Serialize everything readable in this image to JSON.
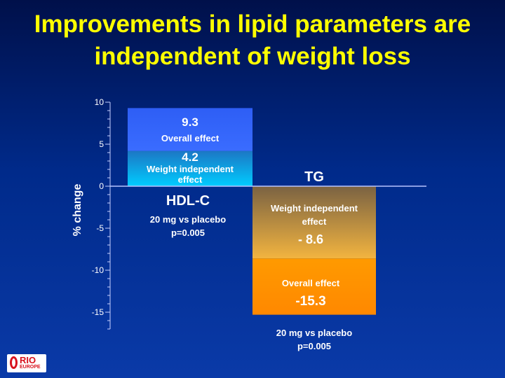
{
  "slide": {
    "title_line1": "Improvements in lipid parameters are",
    "title_line2": "independent of weight loss"
  },
  "chart_data": {
    "type": "bar",
    "ylabel": "% change",
    "ylim": [
      -17,
      10
    ],
    "yticks": [
      10,
      5,
      0,
      -5,
      -10,
      -15
    ],
    "groups": [
      {
        "name": "HDL-C",
        "subtitle_line1": "20 mg vs placebo",
        "subtitle_line2": "p=0.005",
        "segments": [
          {
            "label_value": "4.2",
            "label_line1": "Weight independent",
            "label_line2": "effect",
            "from": 0,
            "to": 4.2,
            "color_top": "#1c77c4",
            "color_bottom": "#00ccff"
          },
          {
            "label_value": "9.3",
            "label_line1": "Overall effect",
            "label_line2": "",
            "from": 4.2,
            "to": 9.3,
            "color_top": "#2e5ef5",
            "color_bottom": "#3a6cff"
          }
        ]
      },
      {
        "name": "TG",
        "subtitle_line1": "20 mg vs placebo",
        "subtitle_line2": "p=0.005",
        "segments": [
          {
            "label_value": "- 8.6",
            "label_line1": "Weight independent",
            "label_line2": "effect",
            "from": 0,
            "to": -8.6,
            "color_top": "#7a6242",
            "color_bottom": "#f2b440"
          },
          {
            "label_value": "-15.3",
            "label_line1": "Overall effect",
            "label_line2": "",
            "from": -8.6,
            "to": -15.3,
            "color_top": "#ff9a00",
            "color_bottom": "#ff8800"
          }
        ]
      }
    ]
  },
  "logo": {
    "name": "RIO",
    "sub": "EUROPE"
  }
}
